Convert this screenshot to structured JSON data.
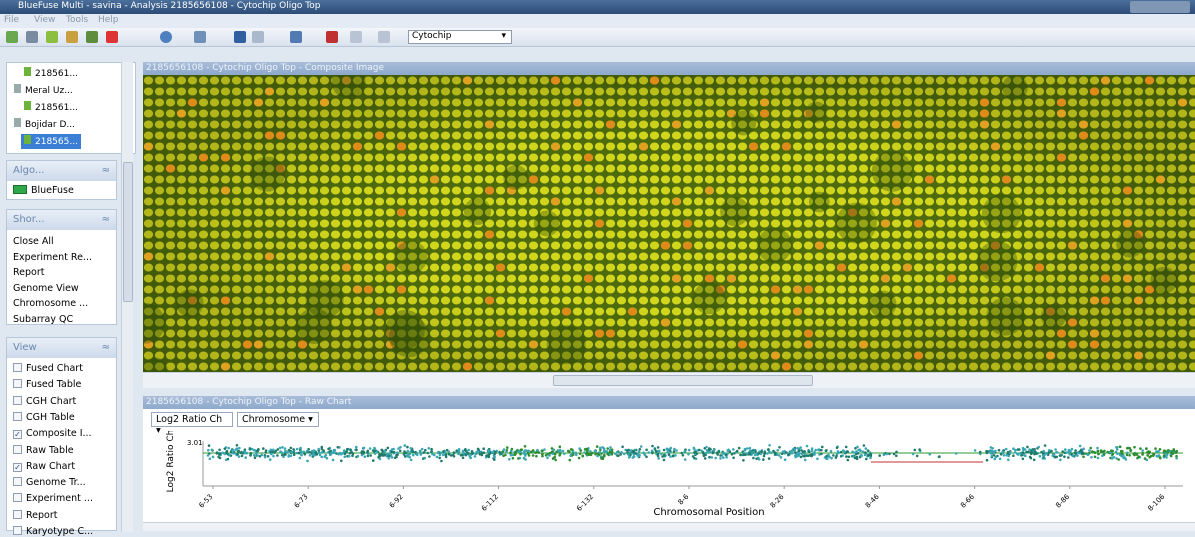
{
  "window": {
    "title": "BlueFuse Multi - savina - Analysis 2185656108 - Cytochip Oligo Top"
  },
  "menu": [
    "File",
    "View",
    "Tools",
    "Help"
  ],
  "toolbar": {
    "combo": "Cytochip"
  },
  "tree": [
    "218561...",
    "Meral Uz...",
    "218561...",
    "Bojidar D...",
    "218565..."
  ],
  "panels": {
    "algorithms": {
      "title": "Algo...",
      "items": [
        "BlueFuse"
      ]
    },
    "shortcuts": {
      "title": "Shor...",
      "items": [
        "Close All",
        "Experiment Re...",
        "Report",
        "Genome View",
        "Chromosome ...",
        "Subarray QC"
      ]
    },
    "view": {
      "title": "View",
      "items": [
        {
          "label": "Fused Chart",
          "checked": false
        },
        {
          "label": "Fused Table",
          "checked": false
        },
        {
          "label": "CGH Chart",
          "checked": false
        },
        {
          "label": "CGH Table",
          "checked": false
        },
        {
          "label": "Composite I...",
          "checked": true
        },
        {
          "label": "Raw Table",
          "checked": false
        },
        {
          "label": "Raw Chart",
          "checked": true
        },
        {
          "label": "Genome Tr...",
          "checked": false
        },
        {
          "label": "Experiment ...",
          "checked": false
        },
        {
          "label": "Report",
          "checked": false
        },
        {
          "label": "Karyotype C...",
          "checked": false
        }
      ]
    }
  },
  "image_panel": {
    "title": "2185656108 - Cytochip Oligo Top - Composite Image"
  },
  "chart_panel": {
    "title": "2185656108 - Cytochip Oligo Top - Raw Chart",
    "measure": "Log2 Ratio Ch",
    "axis_mode": "Chromosome",
    "y_label": "Log2 Ratio Ch",
    "y_tick": "3.01",
    "x_ticks": [
      "6-53",
      "6-73",
      "6-92",
      "6-112",
      "6-132",
      "8-6",
      "8-26",
      "8-46",
      "8-66",
      "8-86",
      "8-106"
    ],
    "x_label": "Chromosomal Position"
  }
}
